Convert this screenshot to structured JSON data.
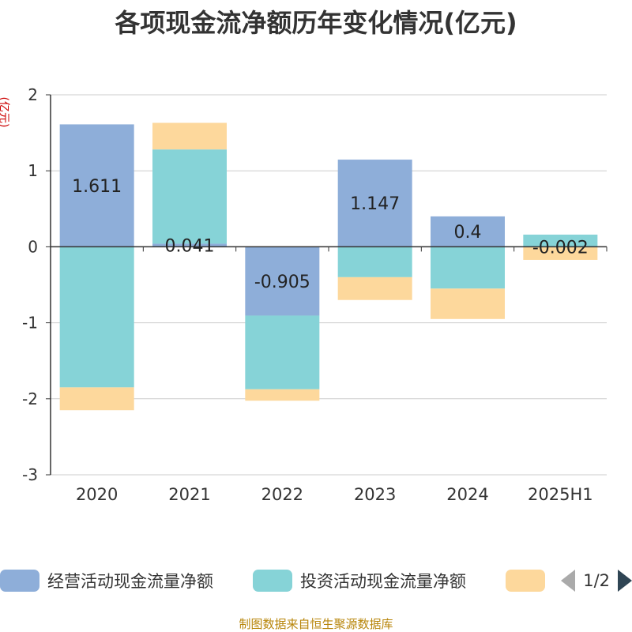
{
  "title": "各项现金流净额历年变化情况(亿元)",
  "y_unit": "(亿元)",
  "footer": "制图数据来自恒生聚源数据库",
  "colors": {
    "operating": "#8eaed9",
    "investing": "#86d3d7",
    "financing": "#fdd89c",
    "axis": "#333333",
    "grid": "#cccccc"
  },
  "legend": {
    "items": [
      {
        "label": "经营活动现金流量净额"
      },
      {
        "label": "投资活动现金流量净额"
      },
      {
        "label": ""
      }
    ],
    "pager": "1/2"
  },
  "chart_data": {
    "type": "bar",
    "stacked": true,
    "categories": [
      "2020",
      "2021",
      "2022",
      "2023",
      "2024",
      "2025H1"
    ],
    "ylim": [
      -3,
      2
    ],
    "yticks": [
      2,
      1,
      0,
      -1,
      -2,
      -3
    ],
    "grid": true,
    "legend_position": "bottom",
    "series": [
      {
        "name": "经营活动现金流量净额",
        "values": [
          1.611,
          0.041,
          -0.905,
          1.147,
          0.4,
          -0.002
        ],
        "labels": [
          "1.611",
          "0.041",
          "-0.905",
          "1.147",
          "0.4",
          "-0.002"
        ]
      },
      {
        "name": "投资活动现金流量净额",
        "values": [
          -1.85,
          1.24,
          -0.97,
          -0.4,
          -0.55,
          0.16
        ]
      },
      {
        "name": "",
        "values": [
          -0.3,
          0.35,
          -0.15,
          -0.3,
          -0.4,
          -0.17
        ]
      }
    ]
  }
}
